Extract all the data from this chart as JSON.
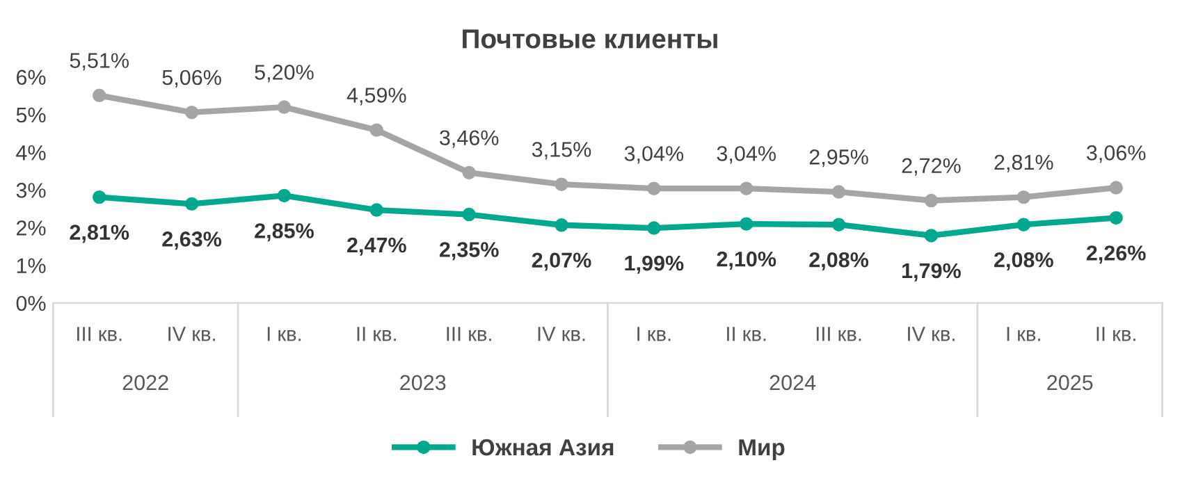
{
  "chart_data": {
    "type": "line",
    "title": "Почтовые клиенты",
    "categories": [
      "III кв.",
      "IV кв.",
      "I кв.",
      "II кв.",
      "III кв.",
      "IV кв.",
      "I кв.",
      "II кв.",
      "III кв.",
      "IV кв.",
      "I кв.",
      "II кв."
    ],
    "series": [
      {
        "name": "Южная Азия",
        "color": "#00a88e",
        "values": [
          2.81,
          2.63,
          2.85,
          2.47,
          2.35,
          2.07,
          1.99,
          2.1,
          2.08,
          1.79,
          2.08,
          2.26
        ],
        "value_labels": [
          "2,81%",
          "2,63%",
          "2,85%",
          "2,47%",
          "2,35%",
          "2,07%",
          "1,99%",
          "2,10%",
          "2,08%",
          "1,79%",
          "2,08%",
          "2,26%"
        ]
      },
      {
        "name": "Мир",
        "color": "#a5a5a5",
        "values": [
          5.51,
          5.06,
          5.2,
          4.59,
          3.46,
          3.15,
          3.04,
          3.04,
          2.95,
          2.72,
          2.81,
          3.06
        ],
        "value_labels": [
          "5,51%",
          "5,06%",
          "5,20%",
          "4,59%",
          "3,46%",
          "3,15%",
          "3,04%",
          "3,04%",
          "2,95%",
          "2,72%",
          "2,81%",
          "3,06%"
        ]
      }
    ],
    "ylim": [
      0,
      6
    ],
    "yticks": [
      {
        "value": 0,
        "label": "0%"
      },
      {
        "value": 1,
        "label": "1%"
      },
      {
        "value": 2,
        "label": "2%"
      },
      {
        "value": 3,
        "label": "3%"
      },
      {
        "value": 4,
        "label": "4%"
      },
      {
        "value": 5,
        "label": "5%"
      },
      {
        "value": 6,
        "label": "6%"
      }
    ],
    "annotations": [
      "2022",
      "2023",
      "2024",
      "2025"
    ],
    "marker": "circle",
    "line_style": "solid",
    "grid": false,
    "legend": "bottom"
  }
}
